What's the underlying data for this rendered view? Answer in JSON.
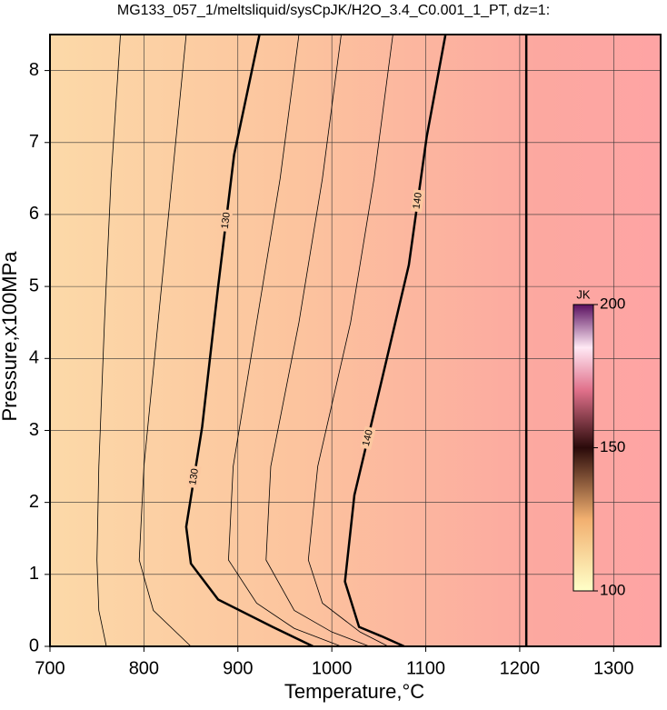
{
  "chart_data": {
    "type": "contour",
    "title": "MG133_057_1/meltsliquid/sysCpJK/H2O_3.4_C0.001_1_PT, dz=1:",
    "x_label": "Temperature,°C",
    "y_label": "Pressure,x100MPa",
    "xlim": [
      700,
      1350
    ],
    "ylim": [
      0,
      8.5
    ],
    "xticks": [
      700,
      800,
      900,
      1000,
      1100,
      1200,
      1300
    ],
    "yticks": [
      0,
      1,
      2,
      3,
      4,
      5,
      6,
      7,
      8
    ],
    "grid": true,
    "contours": [
      {
        "label": "130",
        "x": [
          923,
          896,
          879,
          862,
          845,
          850,
          879,
          937,
          980
        ],
        "y": [
          8.5,
          6.83,
          5.0,
          3.05,
          1.66,
          1.15,
          0.65,
          0.27,
          0
        ]
      },
      {
        "label": "140",
        "x": [
          1121,
          1101,
          1082,
          1053,
          1024,
          1014,
          1029,
          1053,
          1077
        ],
        "y": [
          8.5,
          7.08,
          5.3,
          3.69,
          2.1,
          0.9,
          0.27,
          0.14,
          0
        ]
      },
      {
        "x": [
          775,
          765,
          758,
          752,
          750,
          752,
          760
        ],
        "y": [
          8.5,
          6.5,
          4.5,
          2.5,
          1.2,
          0.5,
          0
        ]
      },
      {
        "x": [
          845,
          830,
          815,
          800,
          795,
          810,
          850
        ],
        "y": [
          8.5,
          6.5,
          4.5,
          2.5,
          1.2,
          0.5,
          0
        ]
      },
      {
        "x": [
          965,
          945,
          920,
          895,
          890,
          920,
          960,
          1010
        ],
        "y": [
          8.5,
          6.5,
          4.5,
          2.5,
          1.2,
          0.6,
          0.25,
          0
        ]
      },
      {
        "x": [
          1010,
          990,
          965,
          935,
          930,
          960,
          1000,
          1040
        ],
        "y": [
          8.5,
          6.5,
          4.5,
          2.5,
          1.2,
          0.5,
          0.2,
          0
        ]
      },
      {
        "x": [
          1065,
          1045,
          1020,
          985,
          975,
          990,
          1030,
          1060
        ],
        "y": [
          8.5,
          6.5,
          4.5,
          2.5,
          1.2,
          0.6,
          0.2,
          0
        ]
      },
      {
        "x": [
          1207,
          1207
        ],
        "y": [
          0,
          8.5
        ],
        "bold": true
      }
    ],
    "colorbar": {
      "title": "JK",
      "lim": [
        100,
        200
      ],
      "ticks": [
        100,
        150,
        200
      ]
    }
  }
}
